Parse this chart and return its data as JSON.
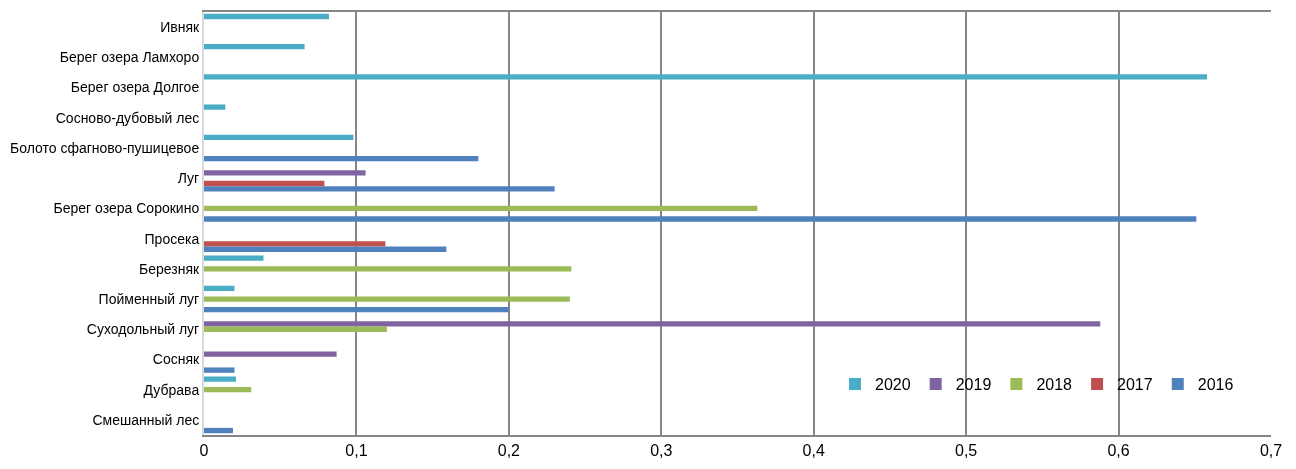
{
  "chart_data": {
    "type": "bar",
    "orientation": "horizontal",
    "categories": [
      "Ивняк",
      "Берег озера Ламхоро",
      "Берег озера Долгое",
      "Сосново-дубовый лес",
      "Болото сфагново-пушицевое",
      "Луг",
      "Берег озера Сорокино",
      "Просека",
      "Березняк",
      "Пойменный луг",
      "Суходольный луг",
      "Сосняк",
      "Дубрава",
      "Смешанный лес"
    ],
    "series": [
      {
        "name": "2020",
        "color": "#4bacc6",
        "values": [
          0.082,
          0.066,
          0.658,
          0.014,
          0.098,
          null,
          null,
          null,
          0.039,
          0.02,
          null,
          null,
          0.021,
          null
        ]
      },
      {
        "name": "2019",
        "color": "#8064a2",
        "values": [
          null,
          null,
          null,
          null,
          null,
          0.106,
          null,
          null,
          null,
          null,
          0.588,
          0.087,
          null,
          null
        ]
      },
      {
        "name": "2018",
        "color": "#9bbb59",
        "values": [
          null,
          null,
          null,
          null,
          null,
          null,
          0.363,
          null,
          0.241,
          0.24,
          0.12,
          null,
          0.031,
          null
        ]
      },
      {
        "name": "2017",
        "color": "#c0504d",
        "values": [
          null,
          null,
          null,
          null,
          null,
          0.079,
          null,
          0.119,
          null,
          null,
          null,
          null,
          null,
          null
        ]
      },
      {
        "name": "2016",
        "color": "#4f81bd",
        "values": [
          null,
          null,
          null,
          null,
          0.18,
          0.23,
          0.651,
          0.159,
          null,
          0.2,
          null,
          0.02,
          null,
          0.019
        ]
      }
    ],
    "xlim": [
      0,
      0.7
    ],
    "xticks": [
      0,
      {
        "value": 0.1,
        "label": "0,1"
      },
      {
        "value": 0.2,
        "label": "0,2"
      },
      {
        "value": 0.3,
        "label": "0,3"
      },
      {
        "value": 0.4,
        "label": "0,4"
      },
      {
        "value": 0.5,
        "label": "0,5"
      },
      {
        "value": 0.6,
        "label": "0,6"
      },
      {
        "value": 0.7,
        "label": "0,7"
      }
    ],
    "grid": "x",
    "legend": "bottom right"
  }
}
